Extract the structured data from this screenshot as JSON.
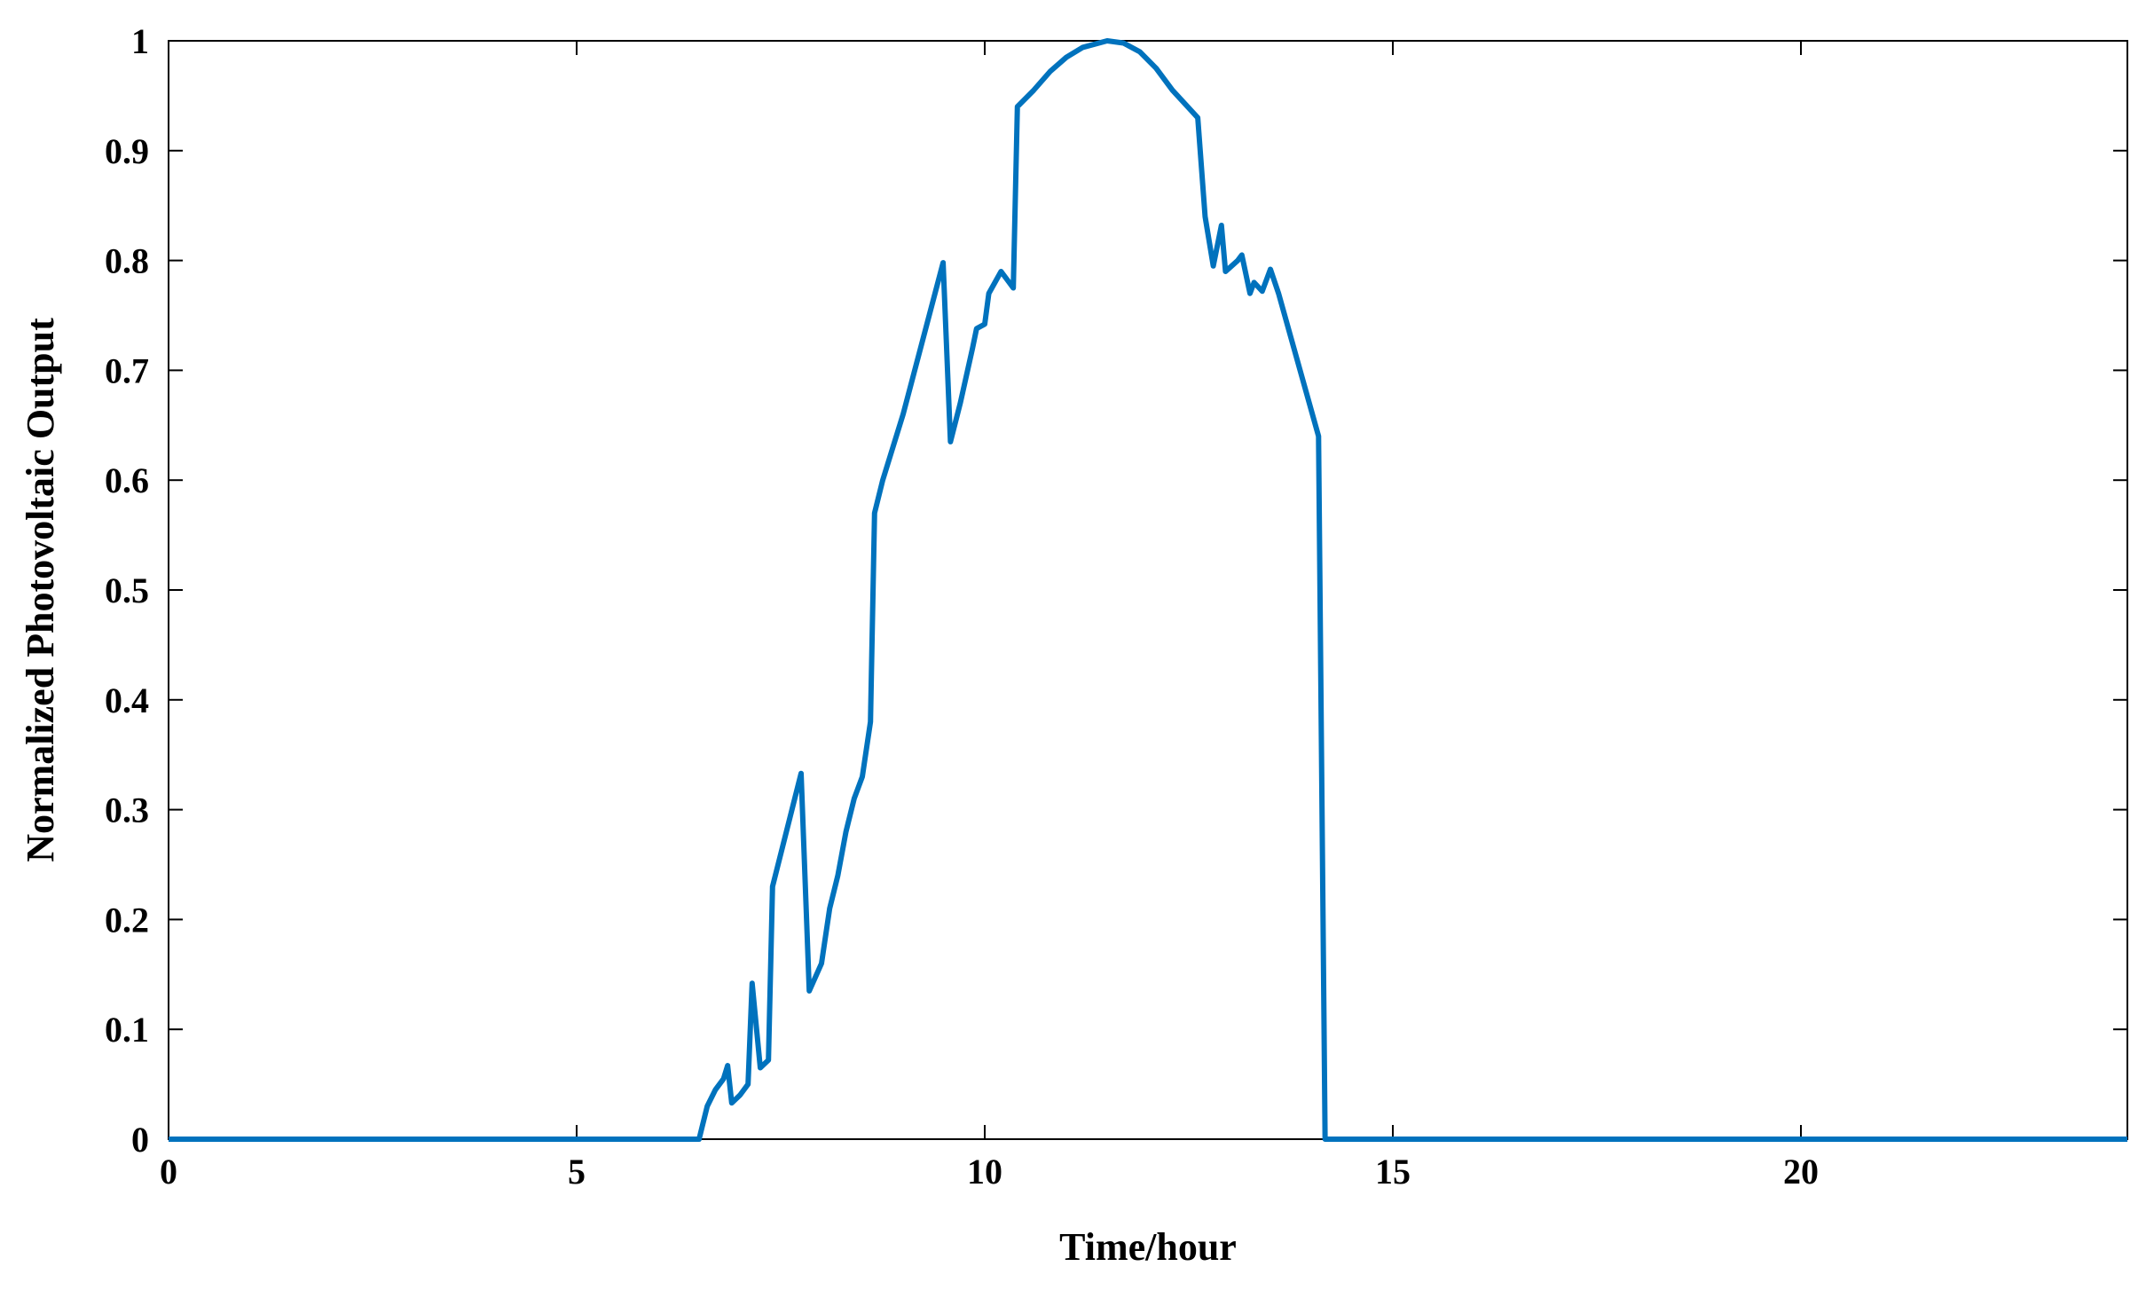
{
  "chart_data": {
    "type": "line",
    "xlabel": "Time/hour",
    "ylabel": "Normalized Photovoltaic Output",
    "xlim": [
      0,
      24
    ],
    "ylim": [
      0,
      1
    ],
    "xticks": [
      0,
      5,
      10,
      15,
      20
    ],
    "yticks": [
      0,
      0.1,
      0.2,
      0.3,
      0.4,
      0.5,
      0.6,
      0.7,
      0.8,
      0.9,
      1
    ],
    "series": [
      {
        "color": "#0072bd",
        "x": [
          0,
          6.5,
          6.6,
          6.7,
          6.8,
          6.85,
          6.9,
          7.0,
          7.1,
          7.15,
          7.25,
          7.35,
          7.4,
          7.75,
          7.85,
          8.0,
          8.1,
          8.2,
          8.3,
          8.4,
          8.5,
          8.6,
          8.65,
          8.75,
          9.0,
          9.49,
          9.58,
          9.7,
          9.85,
          9.9,
          10.0,
          10.05,
          10.2,
          10.3,
          10.35,
          10.4,
          10.6,
          10.8,
          11.0,
          11.2,
          11.5,
          11.7,
          11.9,
          12.1,
          12.3,
          12.61,
          12.7,
          12.8,
          12.9,
          12.95,
          13.1,
          13.15,
          13.25,
          13.3,
          13.4,
          13.5,
          13.6,
          14.09,
          14.17,
          24
        ],
        "values": [
          0,
          0,
          0.03,
          0.045,
          0.055,
          0.067,
          0.033,
          0.04,
          0.05,
          0.142,
          0.065,
          0.072,
          0.23,
          0.333,
          0.135,
          0.16,
          0.21,
          0.24,
          0.28,
          0.31,
          0.33,
          0.38,
          0.57,
          0.6,
          0.66,
          0.798,
          0.635,
          0.67,
          0.72,
          0.738,
          0.742,
          0.77,
          0.79,
          0.78,
          0.775,
          0.94,
          0.955,
          0.972,
          0.985,
          0.994,
          1.0,
          0.998,
          0.99,
          0.975,
          0.955,
          0.93,
          0.84,
          0.795,
          0.832,
          0.79,
          0.8,
          0.805,
          0.77,
          0.78,
          0.772,
          0.792,
          0.77,
          0.64,
          0,
          0
        ]
      }
    ]
  }
}
